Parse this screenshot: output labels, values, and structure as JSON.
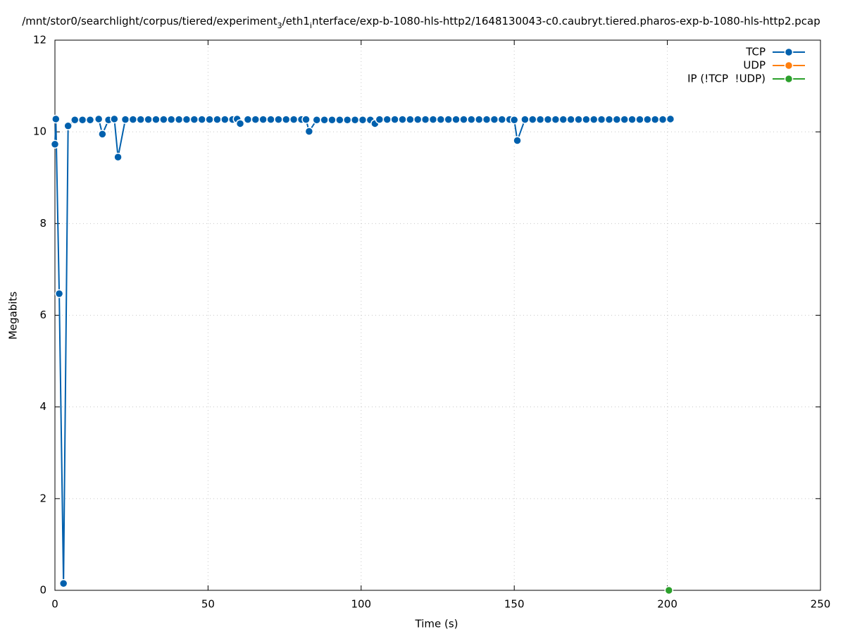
{
  "chart_data": {
    "type": "line",
    "title": [
      {
        "text": "/mnt/stor0/searchlight/corpus/tiered/experiment"
      },
      {
        "text": "3",
        "subscript": true
      },
      {
        "text": "/eth1"
      },
      {
        "text": "i",
        "subscript": true
      },
      {
        "text": "nterface/exp-b-1080-hls-http2/1648130043-c0.caubryt.tiered.pharos-exp-b-1080-hls-http2.pcap"
      }
    ],
    "xlabel": "Time (s)",
    "ylabel": "Megabits",
    "xlim": [
      0,
      250
    ],
    "xticks": [
      0,
      50,
      100,
      150,
      200,
      250
    ],
    "ylim": [
      0,
      12
    ],
    "yticks": [
      0,
      2,
      4,
      6,
      8,
      10,
      12
    ],
    "grid": true,
    "legend": "top-right",
    "series": [
      {
        "name": "TCP",
        "color": "#0060ad",
        "x": [
          0,
          0.3,
          1.4,
          2.8,
          4.3,
          6.5,
          9,
          11.5,
          14.3,
          15.5,
          17.5,
          19.4,
          20.6,
          23,
          25.5,
          28,
          30.5,
          33,
          35.5,
          38,
          40.5,
          43,
          45.5,
          48,
          50.5,
          53,
          55.5,
          58,
          59.5,
          60.5,
          63,
          65.5,
          68,
          70.5,
          73,
          75.5,
          78,
          80.5,
          82,
          83,
          85.5,
          88,
          90.5,
          93,
          95.5,
          98,
          100.5,
          103,
          104.5,
          106,
          108.5,
          111,
          113.5,
          116,
          118.5,
          121,
          123.5,
          126,
          128.5,
          131,
          133.5,
          136,
          138.5,
          141,
          143.5,
          146,
          148.5,
          150,
          151,
          153.5,
          156,
          158.5,
          161,
          163.5,
          166,
          168.5,
          171,
          173.5,
          176,
          178.5,
          181,
          183.5,
          186,
          188.5,
          191,
          193.5,
          196,
          198.5,
          201
        ],
        "values": [
          9.73,
          10.28,
          6.47,
          0.15,
          10.13,
          10.26,
          10.26,
          10.26,
          10.28,
          9.95,
          10.26,
          10.28,
          9.45,
          10.27,
          10.27,
          10.27,
          10.27,
          10.27,
          10.27,
          10.27,
          10.27,
          10.27,
          10.27,
          10.27,
          10.27,
          10.27,
          10.27,
          10.27,
          10.28,
          10.18,
          10.27,
          10.27,
          10.27,
          10.27,
          10.27,
          10.27,
          10.27,
          10.27,
          10.27,
          10.01,
          10.26,
          10.26,
          10.26,
          10.26,
          10.26,
          10.26,
          10.26,
          10.26,
          10.18,
          10.27,
          10.27,
          10.27,
          10.27,
          10.27,
          10.27,
          10.27,
          10.27,
          10.27,
          10.27,
          10.27,
          10.27,
          10.27,
          10.27,
          10.27,
          10.27,
          10.27,
          10.27,
          10.26,
          9.81,
          10.27,
          10.27,
          10.27,
          10.27,
          10.27,
          10.27,
          10.27,
          10.27,
          10.27,
          10.27,
          10.27,
          10.27,
          10.27,
          10.27,
          10.27,
          10.27,
          10.27,
          10.27,
          10.27,
          10.28
        ]
      },
      {
        "name": "UDP",
        "color": "#ff7f0e",
        "x": [],
        "values": []
      },
      {
        "name": "IP (!TCP  !UDP)",
        "color": "#2ca02c",
        "x": [
          200.5
        ],
        "values": [
          0
        ]
      }
    ]
  }
}
